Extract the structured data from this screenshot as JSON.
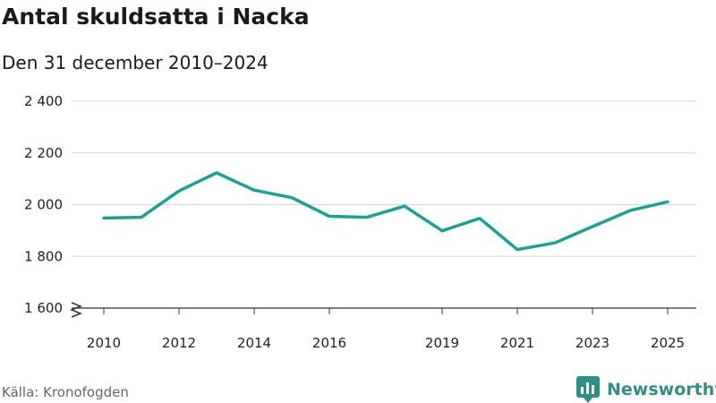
{
  "header": {
    "title": "Antal skuldsatta i Nacka",
    "subtitle": "Den 31 december 2010–2024"
  },
  "footer": {
    "source": "Källa: Kronofogden",
    "brand": "Newsworthy"
  },
  "icons": {
    "axis_break": "axis-break-icon",
    "brand_logo": "newsworthy-logo-icon"
  },
  "colors": {
    "line": "#1aa198",
    "grid": "#d9d9d9",
    "axis": "#333333",
    "brand": "#2e8f87"
  },
  "chart_data": {
    "type": "line",
    "title": "Antal skuldsatta i Nacka",
    "subtitle": "Den 31 december 2010–2024",
    "x": [
      2010,
      2011,
      2012,
      2013,
      2014,
      2015,
      2016,
      2017,
      2018,
      2019,
      2020,
      2021,
      2022,
      2023,
      2024,
      2025
    ],
    "series": [
      {
        "values": [
          1948,
          1951,
          2053,
          2123,
          2056,
          2027,
          1955,
          1951,
          1994,
          1899,
          1947,
          1826,
          1852,
          1915,
          1977,
          2011
        ]
      }
    ],
    "xticks": [
      2010,
      2012,
      2014,
      2016,
      2019,
      2021,
      2023,
      2025
    ],
    "xtick_labels": [
      "2010",
      "2012",
      "2014",
      "2016",
      "2019",
      "2021",
      "2023",
      "2025"
    ],
    "yticks": [
      1600,
      1800,
      2000,
      2200,
      2400
    ],
    "ytick_labels": [
      "1 600",
      "1 800",
      "2 000",
      "2 200",
      "2 400"
    ],
    "ylim": [
      1600,
      2400
    ],
    "xlim": [
      2010,
      2025
    ],
    "grid": true,
    "y_axis_break": true,
    "legend": "none"
  }
}
